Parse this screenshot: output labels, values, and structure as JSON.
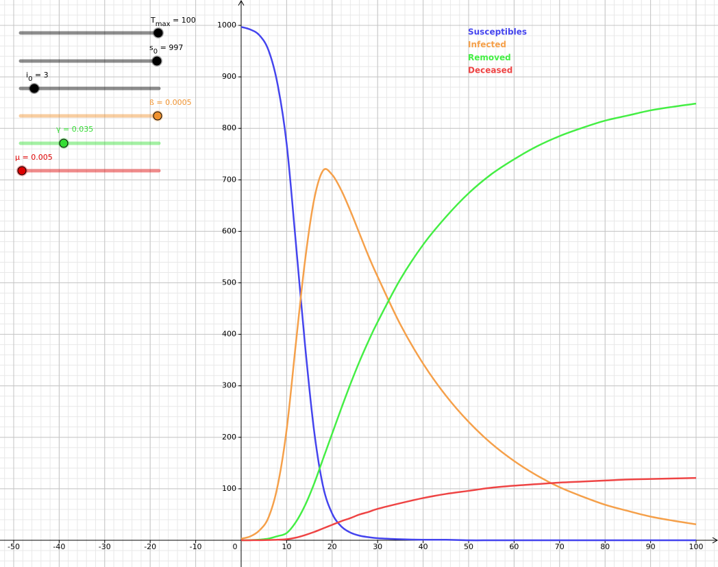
{
  "sliders": [
    {
      "label": "T",
      "subscript": "max",
      "suffix": " = 100",
      "color": "#000000"
    },
    {
      "label": "s",
      "subscript": "0",
      "suffix": " = 997",
      "color": "#000000"
    },
    {
      "label": "i",
      "subscript": "0",
      "suffix": " = 3",
      "color": "#000000"
    },
    {
      "label": "ß = 0.0005",
      "color": "#f0922e"
    },
    {
      "label": "γ = 0.035",
      "color": "#33dd33"
    },
    {
      "label": "μ = 0.005",
      "color": "#dd0000"
    }
  ],
  "chart_data": {
    "type": "line",
    "x": [
      0,
      2,
      4,
      6,
      8,
      10,
      12,
      14,
      16,
      18,
      20,
      22,
      24,
      26,
      28,
      30,
      35,
      40,
      45,
      50,
      55,
      60,
      65,
      70,
      75,
      80,
      85,
      90,
      95,
      100
    ],
    "series": [
      {
        "name": "Susceptibles",
        "color": "#4444ee",
        "values": [
          997,
          992,
          981,
          952,
          886,
          770,
          580,
          383,
          215,
          105,
          52,
          27,
          15,
          9,
          6,
          4,
          2,
          1,
          1,
          0,
          0,
          0,
          0,
          0,
          0,
          0,
          0,
          0,
          0,
          0
        ]
      },
      {
        "name": "Infected",
        "color": "#f5a04a",
        "values": [
          3,
          7.5,
          19,
          44,
          105,
          215,
          380,
          540,
          660,
          718,
          710,
          680,
          640,
          596,
          552,
          512,
          419,
          343,
          281,
          230,
          188,
          154,
          126,
          103,
          85,
          69,
          57,
          46,
          38,
          31
        ]
      },
      {
        "name": "Removed",
        "color": "#44ee44",
        "values": [
          0,
          0.4,
          1.2,
          3.2,
          8,
          14,
          35,
          67,
          109,
          158,
          207,
          256,
          303,
          347,
          387,
          424,
          507,
          574,
          628,
          674,
          711,
          740,
          765,
          785,
          801,
          815,
          825,
          835,
          842,
          848
        ]
      },
      {
        "name": "Deceased",
        "color": "#ee4444",
        "values": [
          0,
          0.1,
          0.2,
          0.5,
          1,
          2,
          5,
          10,
          16,
          23,
          30,
          37,
          43,
          50,
          55,
          61,
          72,
          82,
          90,
          96,
          102,
          106,
          109,
          112,
          114,
          116,
          118,
          119,
          120,
          121
        ]
      }
    ],
    "xlim": [
      -53.01,
      104.82
    ],
    "ylim": [
      -51.9,
      1049.3
    ],
    "xticks": [
      -50,
      -40,
      -30,
      -20,
      -10,
      0,
      10,
      20,
      30,
      40,
      50,
      60,
      70,
      80,
      90,
      100
    ],
    "yticks": [
      100,
      200,
      300,
      400,
      500,
      600,
      700,
      800,
      900,
      1000
    ],
    "grid": true
  }
}
